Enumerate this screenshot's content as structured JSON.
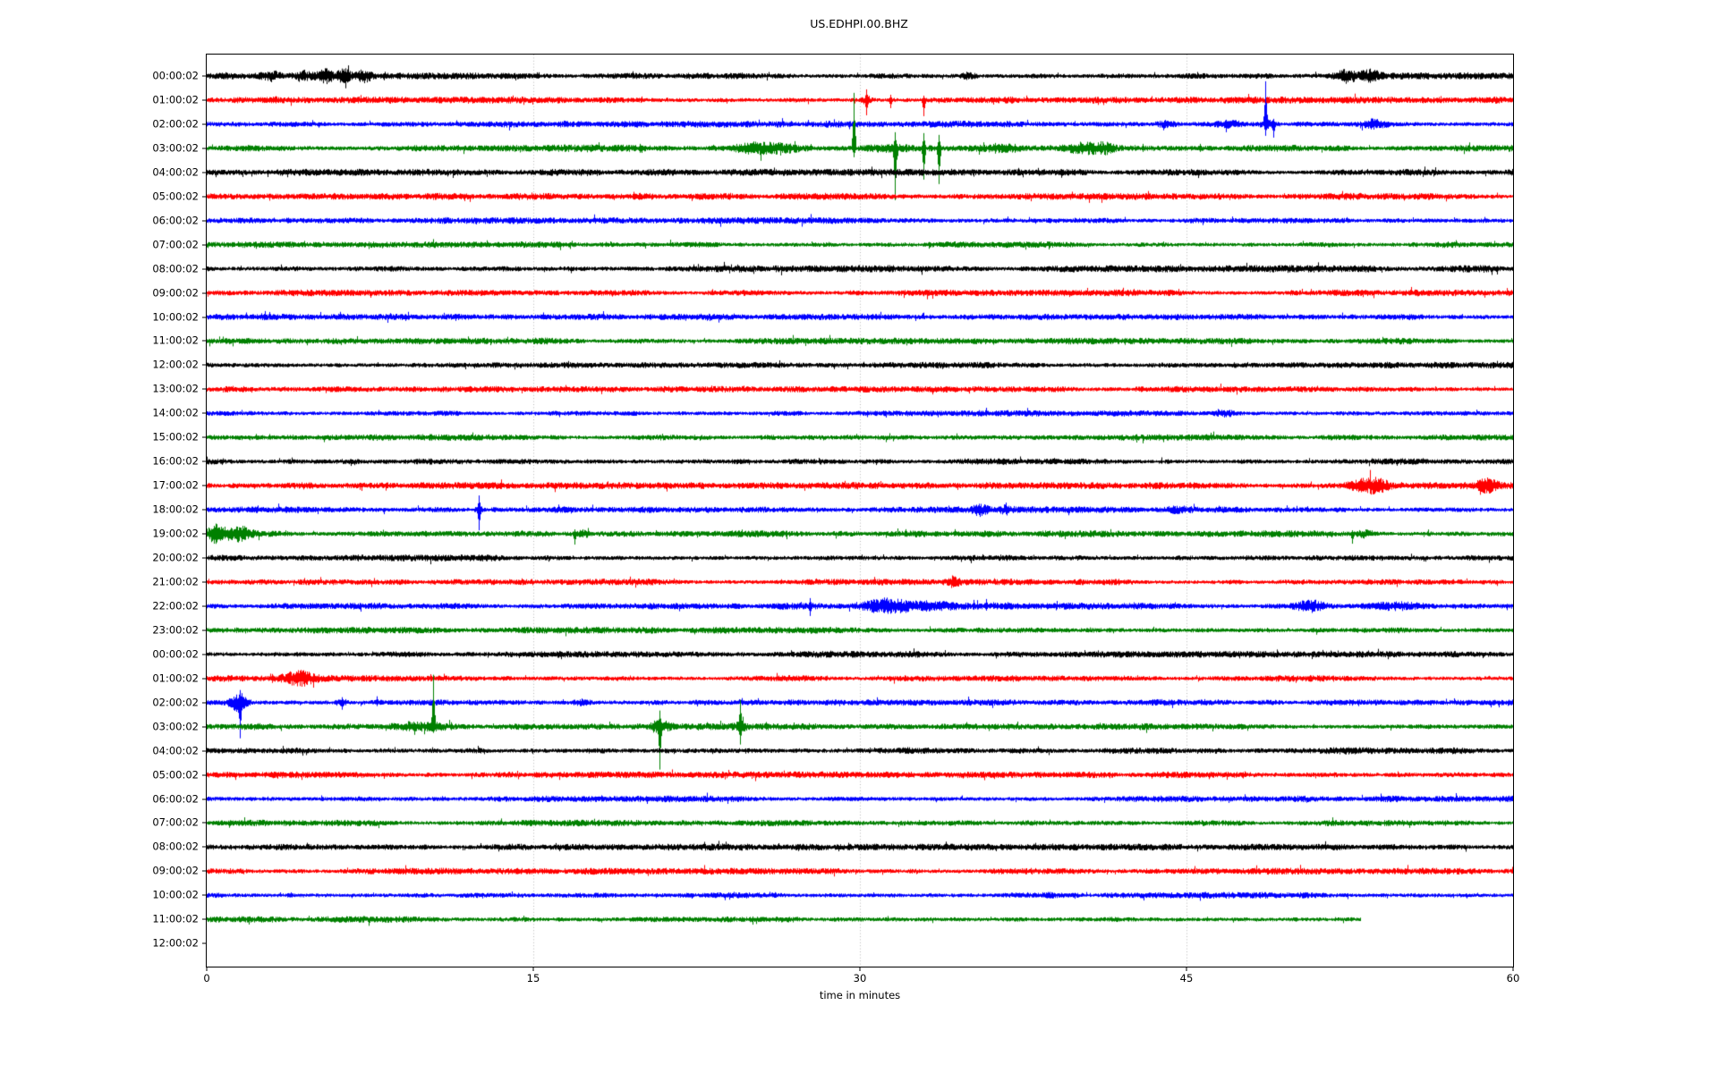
{
  "title": "US.EDHPI.00.BHZ",
  "chart_data": {
    "type": "line",
    "subtype": "seismogram-dayplot",
    "title": "US.EDHPI.00.BHZ",
    "xlabel": "time in minutes",
    "xlim": [
      0,
      60
    ],
    "x_ticks": [
      0,
      15,
      30,
      45,
      60
    ],
    "grid_minutes": [
      15,
      30,
      45
    ],
    "grid_on": true,
    "background_color": "#ffffff",
    "text_color": "#000000",
    "grid_color": "#b0b0b0",
    "color_cycle": [
      "#000000",
      "#ff0000",
      "#0000ff",
      "#008000"
    ],
    "event_format": {
      "b": "burst: [\"b\", center_minute, width_minutes, extra_half_amplitude_px]",
      "s": "spike: [\"s\", minute, up_px, down_px]"
    },
    "rows": [
      {
        "label": "00:00:02",
        "color": "#000000",
        "base": 2.7,
        "events": [
          [
            "b",
            2.9,
            0.3,
            4
          ],
          [
            "b",
            4.4,
            0.25,
            3.5
          ],
          [
            "b",
            5.4,
            0.25,
            4.5
          ],
          [
            "b",
            6.3,
            0.2,
            4
          ],
          [
            "b",
            7.2,
            0.25,
            4.5
          ],
          [
            "b",
            5.0,
            2.0,
            1.2
          ],
          [
            "b",
            35.0,
            0.25,
            2.5
          ],
          [
            "b",
            52.3,
            0.35,
            5
          ],
          [
            "b",
            53.4,
            0.3,
            4.5
          ]
        ]
      },
      {
        "label": "01:00:02",
        "color": "#ff0000",
        "base": 2.7,
        "events": [
          [
            "b",
            30.3,
            0.15,
            2.5
          ],
          [
            "s",
            30.3,
            12,
            17
          ],
          [
            "s",
            31.4,
            6,
            9
          ],
          [
            "s",
            32.9,
            5,
            18
          ]
        ]
      },
      {
        "label": "02:00:02",
        "color": "#0000ff",
        "base": 2.7,
        "events": [
          [
            "b",
            44.0,
            0.3,
            2
          ],
          [
            "s",
            46.8,
            5,
            9
          ],
          [
            "b",
            47.0,
            0.4,
            2.5
          ],
          [
            "s",
            48.6,
            48,
            13
          ],
          [
            "b",
            48.7,
            0.25,
            3
          ],
          [
            "s",
            49.0,
            6,
            15
          ],
          [
            "b",
            53.6,
            0.4,
            4
          ]
        ]
      },
      {
        "label": "03:00:02",
        "color": "#008000",
        "base": 2.7,
        "events": [
          [
            "b",
            18.5,
            2.0,
            1.4
          ],
          [
            "s",
            19.9,
            5,
            5
          ],
          [
            "b",
            25.0,
            0.5,
            3
          ],
          [
            "s",
            25.6,
            7,
            6
          ],
          [
            "b",
            26.2,
            0.8,
            3.5
          ],
          [
            "s",
            27.0,
            8,
            5
          ],
          [
            "s",
            29.7,
            62,
            10
          ],
          [
            "b",
            31.5,
            1.0,
            2
          ],
          [
            "s",
            31.6,
            18,
            58
          ],
          [
            "s",
            32.9,
            17,
            35
          ],
          [
            "s",
            33.6,
            15,
            40
          ],
          [
            "s",
            36.2,
            6,
            6
          ],
          [
            "b",
            36.6,
            0.5,
            2
          ],
          [
            "s",
            37.1,
            5,
            5
          ],
          [
            "b",
            40.3,
            0.6,
            3.5
          ],
          [
            "b",
            41.2,
            0.3,
            3
          ],
          [
            "s",
            43.0,
            5,
            4
          ],
          [
            "s",
            45.6,
            5,
            4
          ]
        ]
      },
      {
        "label": "04:00:02",
        "color": "#000000",
        "base": 2.7,
        "events": []
      },
      {
        "label": "05:00:02",
        "color": "#ff0000",
        "base": 2.7,
        "events": []
      },
      {
        "label": "06:00:02",
        "color": "#0000ff",
        "base": 2.6,
        "events": []
      },
      {
        "label": "07:00:02",
        "color": "#008000",
        "base": 2.5,
        "events": []
      },
      {
        "label": "08:00:02",
        "color": "#000000",
        "base": 2.8,
        "events": []
      },
      {
        "label": "09:00:02",
        "color": "#ff0000",
        "base": 2.6,
        "events": []
      },
      {
        "label": "10:00:02",
        "color": "#0000ff",
        "base": 2.5,
        "events": []
      },
      {
        "label": "11:00:02",
        "color": "#008000",
        "base": 2.6,
        "events": []
      },
      {
        "label": "12:00:02",
        "color": "#000000",
        "base": 2.6,
        "events": []
      },
      {
        "label": "13:00:02",
        "color": "#ff0000",
        "base": 2.5,
        "events": []
      },
      {
        "label": "14:00:02",
        "color": "#0000ff",
        "base": 2.5,
        "events": [
          [
            "b",
            46.7,
            0.3,
            2.5
          ]
        ]
      },
      {
        "label": "15:00:02",
        "color": "#008000",
        "base": 2.5,
        "events": []
      },
      {
        "label": "16:00:02",
        "color": "#000000",
        "base": 2.7,
        "events": []
      },
      {
        "label": "17:00:02",
        "color": "#ff0000",
        "base": 2.7,
        "events": [
          [
            "b",
            53.2,
            0.5,
            6
          ],
          [
            "b",
            53.9,
            0.3,
            4
          ],
          [
            "b",
            58.8,
            0.35,
            5
          ]
        ]
      },
      {
        "label": "18:00:02",
        "color": "#0000ff",
        "base": 2.6,
        "events": [
          [
            "s",
            12.5,
            16,
            23
          ],
          [
            "b",
            12.5,
            0.12,
            2.5
          ],
          [
            "b",
            35.5,
            0.3,
            4
          ],
          [
            "s",
            35.5,
            4,
            8
          ],
          [
            "s",
            36.7,
            8,
            5
          ],
          [
            "b",
            36.7,
            0.18,
            2.5
          ],
          [
            "b",
            44.6,
            0.3,
            2
          ]
        ]
      },
      {
        "label": "19:00:02",
        "color": "#008000",
        "base": 2.7,
        "events": [
          [
            "b",
            0.4,
            0.3,
            7
          ],
          [
            "b",
            1.5,
            0.4,
            6
          ],
          [
            "s",
            16.9,
            5,
            12
          ],
          [
            "b",
            17.3,
            0.2,
            3
          ],
          [
            "s",
            52.6,
            4,
            11
          ],
          [
            "b",
            53.2,
            0.3,
            3
          ]
        ]
      },
      {
        "label": "20:00:02",
        "color": "#000000",
        "base": 2.7,
        "events": []
      },
      {
        "label": "21:00:02",
        "color": "#ff0000",
        "base": 2.6,
        "events": [
          [
            "b",
            34.3,
            0.18,
            5
          ]
        ]
      },
      {
        "label": "22:00:02",
        "color": "#0000ff",
        "base": 2.7,
        "events": [
          [
            "s",
            27.7,
            9,
            11
          ],
          [
            "b",
            31.0,
            0.6,
            5
          ],
          [
            "b",
            32.5,
            1.3,
            4
          ],
          [
            "s",
            35.2,
            7,
            4
          ],
          [
            "s",
            35.8,
            8,
            5
          ],
          [
            "b",
            50.7,
            0.5,
            4.5
          ],
          [
            "b",
            54.8,
            0.8,
            3
          ]
        ]
      },
      {
        "label": "23:00:02",
        "color": "#008000",
        "base": 2.6,
        "events": []
      },
      {
        "label": "00:00:02",
        "color": "#000000",
        "base": 2.6,
        "events": []
      },
      {
        "label": "01:00:02",
        "color": "#ff0000",
        "base": 2.6,
        "events": [
          [
            "s",
            3.0,
            5,
            5
          ],
          [
            "b",
            4.2,
            0.5,
            6
          ]
        ]
      },
      {
        "label": "02:00:02",
        "color": "#0000ff",
        "base": 2.7,
        "events": [
          [
            "s",
            1.5,
            14,
            40
          ],
          [
            "b",
            1.5,
            0.25,
            9
          ],
          [
            "s",
            6.2,
            6,
            8
          ],
          [
            "b",
            6.2,
            0.18,
            2.5
          ],
          [
            "s",
            7.8,
            7,
            4
          ],
          [
            "b",
            17.2,
            0.3,
            2.2
          ]
        ]
      },
      {
        "label": "03:00:02",
        "color": "#008000",
        "base": 2.7,
        "events": [
          [
            "s",
            9.3,
            6,
            5
          ],
          [
            "b",
            9.9,
            0.8,
            3.5
          ],
          [
            "s",
            10.4,
            58,
            7
          ],
          [
            "s",
            11.2,
            5,
            4
          ],
          [
            "s",
            20.8,
            18,
            48
          ],
          [
            "b",
            20.8,
            0.3,
            5
          ],
          [
            "s",
            24.5,
            30,
            20
          ],
          [
            "b",
            24.5,
            0.18,
            2.5
          ]
        ]
      },
      {
        "label": "04:00:02",
        "color": "#000000",
        "base": 2.8,
        "events": []
      },
      {
        "label": "05:00:02",
        "color": "#ff0000",
        "base": 2.6,
        "events": [
          [
            "s",
            47.6,
            3,
            4
          ]
        ]
      },
      {
        "label": "06:00:02",
        "color": "#0000ff",
        "base": 2.6,
        "events": []
      },
      {
        "label": "07:00:02",
        "color": "#008000",
        "base": 2.5,
        "events": []
      },
      {
        "label": "08:00:02",
        "color": "#000000",
        "base": 2.7,
        "events": []
      },
      {
        "label": "09:00:02",
        "color": "#ff0000",
        "base": 2.6,
        "events": []
      },
      {
        "label": "10:00:02",
        "color": "#0000ff",
        "base": 2.6,
        "events": []
      },
      {
        "label": "11:00:02",
        "color": "#008000",
        "base": 2.6,
        "end": 53,
        "events": []
      },
      {
        "label": "12:00:02",
        "color": "#000000",
        "base": 2.5,
        "end": 0,
        "events": []
      }
    ]
  }
}
